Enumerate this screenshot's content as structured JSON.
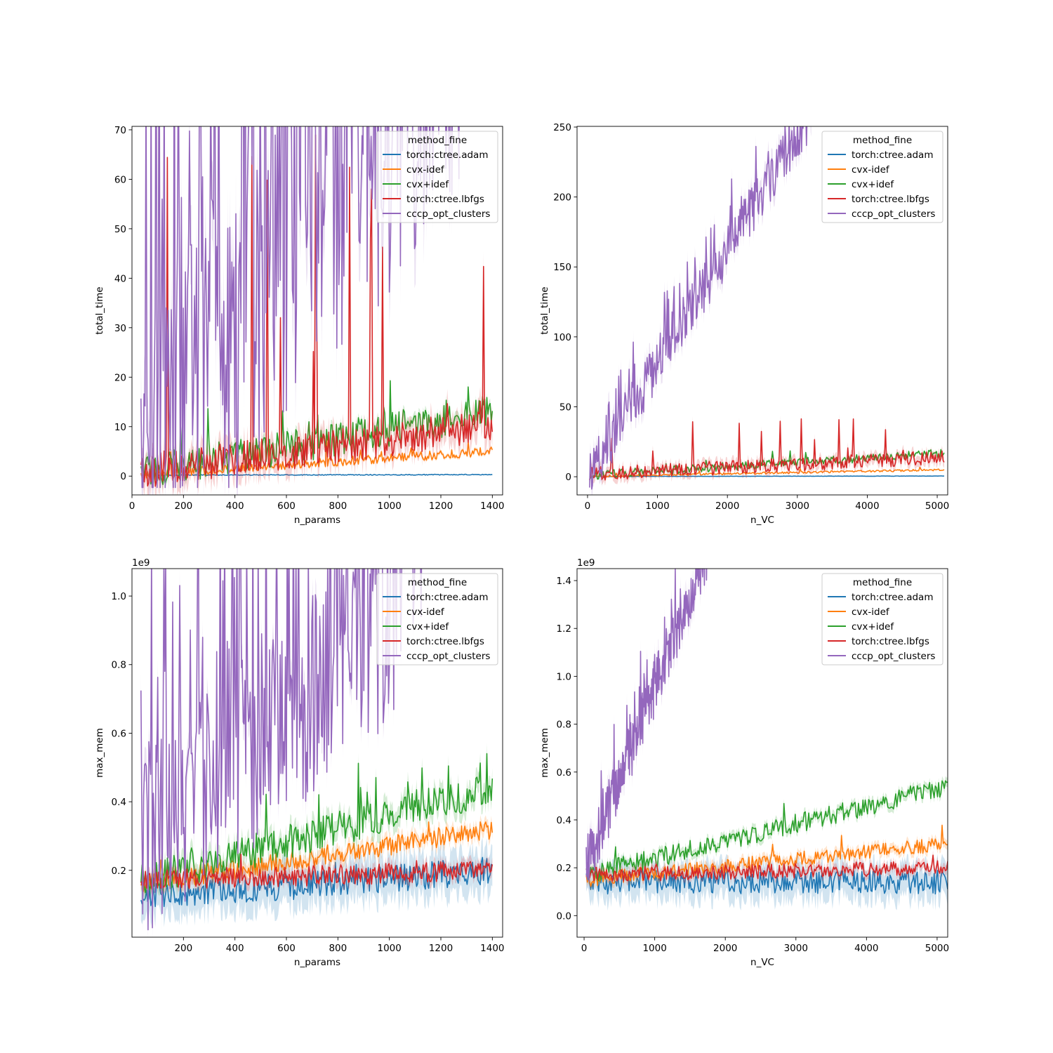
{
  "colors": {
    "torch_ctree_adam": "#1f77b4",
    "cvx_idef_minus": "#ff7f0e",
    "cvx_idef_plus": "#2ca02c",
    "torch_ctree_lbfgs": "#d62728",
    "cccp_opt_clusters": "#9467bd"
  },
  "chart_data": [
    {
      "type": "line",
      "xlabel": "n_params",
      "ylabel": "total_time",
      "offset_text": "",
      "xlim": [
        0,
        1440
      ],
      "ylim": [
        -3.8,
        70.7
      ],
      "xticks": [
        0,
        200,
        400,
        600,
        800,
        1000,
        1200,
        1400
      ],
      "yticks": [
        0,
        10,
        20,
        30,
        40,
        50,
        60,
        70
      ],
      "ytick_labels": [
        "0",
        "10",
        "20",
        "30",
        "40",
        "50",
        "60",
        "70"
      ],
      "legend": {
        "title": "method_fine",
        "location": "upper right"
      },
      "series": [
        {
          "name": "torch:ctree.adam",
          "key": "torch_ctree_adam",
          "x_start": 35,
          "x_end": 1400,
          "level": [
            0.2,
            0.3
          ],
          "noise": 0.08,
          "spike_rate": 0,
          "spike_max": 0,
          "band": 0.05
        },
        {
          "name": "cvx-idef",
          "key": "cvx_idef_minus",
          "x_start": 35,
          "x_end": 1400,
          "level": [
            0.3,
            5.0
          ],
          "noise": 0.9,
          "spike_rate": 0.03,
          "spike_max": 6,
          "band": 0.4
        },
        {
          "name": "cvx+idef",
          "key": "cvx_idef_plus",
          "x_start": 35,
          "x_end": 1400,
          "level": [
            0.8,
            13.0
          ],
          "noise": 3.5,
          "spike_rate": 0.04,
          "spike_max": 10,
          "band": 1.0
        },
        {
          "name": "torch:ctree.lbfgs",
          "key": "torch_ctree_lbfgs",
          "x_start": 35,
          "x_end": 1400,
          "level": [
            1.0,
            10.0
          ],
          "noise": 3.5,
          "spike_rate": 0.05,
          "spike_max": 70,
          "band": 3.0
        },
        {
          "name": "cccp_opt_clusters",
          "key": "cccp_opt_clusters",
          "x_start": 35,
          "x_end": 1290,
          "level": [
            2.0,
            90.0
          ],
          "noise": 35,
          "spike_rate": 0.35,
          "spike_max": 120,
          "band": 8.0
        }
      ]
    },
    {
      "type": "line",
      "xlabel": "n_VC",
      "ylabel": "total_time",
      "offset_text": "",
      "xlim": [
        -150,
        5150
      ],
      "ylim": [
        -13,
        250.5
      ],
      "xticks": [
        0,
        1000,
        2000,
        3000,
        4000,
        5000
      ],
      "yticks": [
        0,
        50,
        100,
        150,
        200,
        250
      ],
      "ytick_labels": [
        "0",
        "50",
        "100",
        "150",
        "200",
        "250"
      ],
      "legend": {
        "title": "method_fine",
        "location": "upper right"
      },
      "series": [
        {
          "name": "torch:ctree.adam",
          "key": "torch_ctree_adam",
          "x_start": 30,
          "x_end": 5100,
          "level": [
            0.2,
            0.5
          ],
          "noise": 0.1,
          "spike_rate": 0,
          "spike_max": 0,
          "band": 0.1
        },
        {
          "name": "cvx-idef",
          "key": "cvx_idef_minus",
          "x_start": 30,
          "x_end": 5100,
          "level": [
            0.3,
            5.0
          ],
          "noise": 0.7,
          "spike_rate": 0.02,
          "spike_max": 3,
          "band": 0.3
        },
        {
          "name": "cvx+idef",
          "key": "cvx_idef_plus",
          "x_start": 30,
          "x_end": 5100,
          "level": [
            1.0,
            17.0
          ],
          "noise": 3.0,
          "spike_rate": 0.03,
          "spike_max": 8,
          "band": 1.0
        },
        {
          "name": "torch:ctree.lbfgs",
          "key": "torch_ctree_lbfgs",
          "x_start": 30,
          "x_end": 5100,
          "level": [
            2.0,
            14.0
          ],
          "noise": 5.0,
          "spike_rate": 0.04,
          "spike_max": 40,
          "band": 4.0
        },
        {
          "name": "cccp_opt_clusters",
          "key": "cccp_opt_clusters",
          "x_start": 30,
          "x_end": 3200,
          "level": [
            1.0,
            260.0
          ],
          "noise": 18,
          "spike_rate": 0.2,
          "spike_max": 30,
          "band": 8.0
        }
      ]
    },
    {
      "type": "line",
      "xlabel": "n_params",
      "ylabel": "max_mem",
      "offset_text": "1e9",
      "xlim": [
        0,
        1440
      ],
      "ylim": [
        0.005,
        1.08
      ],
      "xticks": [
        200,
        400,
        600,
        800,
        1000,
        1200,
        1400
      ],
      "yticks": [
        0.2,
        0.4,
        0.6,
        0.8,
        1.0
      ],
      "ytick_labels": [
        "0.2",
        "0.4",
        "0.6",
        "0.8",
        "1.0"
      ],
      "legend": {
        "title": "method_fine",
        "location": "upper right"
      },
      "series": [
        {
          "name": "torch:ctree.adam",
          "key": "torch_ctree_adam",
          "x_start": 35,
          "x_end": 1400,
          "level": [
            0.12,
            0.2
          ],
          "noise": 0.04,
          "spike_rate": 0.02,
          "spike_max": 0.05,
          "band": 0.06
        },
        {
          "name": "cvx-idef",
          "key": "cvx_idef_minus",
          "x_start": 35,
          "x_end": 1400,
          "level": [
            0.16,
            0.32
          ],
          "noise": 0.03,
          "spike_rate": 0.03,
          "spike_max": 0.06,
          "band": 0.02
        },
        {
          "name": "cvx+idef",
          "key": "cvx_idef_plus",
          "x_start": 35,
          "x_end": 1400,
          "level": [
            0.17,
            0.44
          ],
          "noise": 0.05,
          "spike_rate": 0.04,
          "spike_max": 0.15,
          "band": 0.03
        },
        {
          "name": "torch:ctree.lbfgs",
          "key": "torch_ctree_lbfgs",
          "x_start": 35,
          "x_end": 1400,
          "level": [
            0.17,
            0.2
          ],
          "noise": 0.03,
          "spike_rate": 0.02,
          "spike_max": 0.05,
          "band": 0.02
        },
        {
          "name": "cccp_opt_clusters",
          "key": "cccp_opt_clusters",
          "x_start": 35,
          "x_end": 1130,
          "level": [
            0.25,
            1.0
          ],
          "noise": 0.3,
          "spike_rate": 0.35,
          "spike_max": 0.8,
          "band": 0.05
        }
      ]
    },
    {
      "type": "line",
      "xlabel": "n_VC",
      "ylabel": "max_mem",
      "offset_text": "1e9",
      "xlim": [
        -100,
        5150
      ],
      "ylim": [
        -0.09,
        1.45
      ],
      "xticks": [
        0,
        1000,
        2000,
        3000,
        4000,
        5000
      ],
      "yticks": [
        0.0,
        0.2,
        0.4,
        0.6,
        0.8,
        1.0,
        1.2,
        1.4
      ],
      "ytick_labels": [
        "0.0",
        "0.2",
        "0.4",
        "0.6",
        "0.8",
        "1.0",
        "1.2",
        "1.4"
      ],
      "legend": {
        "title": "method_fine",
        "location": "upper right"
      },
      "series": [
        {
          "name": "torch:ctree.adam",
          "key": "torch_ctree_adam",
          "x_start": 30,
          "x_end": 5150,
          "level": [
            0.14,
            0.14
          ],
          "noise": 0.05,
          "spike_rate": 0.01,
          "spike_max": 0.04,
          "band": 0.07
        },
        {
          "name": "cvx-idef",
          "key": "cvx_idef_minus",
          "x_start": 30,
          "x_end": 5150,
          "level": [
            0.15,
            0.3
          ],
          "noise": 0.03,
          "spike_rate": 0.03,
          "spike_max": 0.06,
          "band": 0.02
        },
        {
          "name": "cvx+idef",
          "key": "cvx_idef_plus",
          "x_start": 30,
          "x_end": 5150,
          "level": [
            0.17,
            0.54
          ],
          "noise": 0.04,
          "spike_rate": 0.03,
          "spike_max": 0.08,
          "band": 0.02
        },
        {
          "name": "torch:ctree.lbfgs",
          "key": "torch_ctree_lbfgs",
          "x_start": 30,
          "x_end": 5150,
          "level": [
            0.17,
            0.2
          ],
          "noise": 0.03,
          "spike_rate": 0.02,
          "spike_max": 0.04,
          "band": 0.02
        },
        {
          "name": "cccp_opt_clusters",
          "key": "cccp_opt_clusters",
          "x_start": 30,
          "x_end": 1970,
          "level": [
            0.2,
            1.7
          ],
          "noise": 0.12,
          "spike_rate": 0.2,
          "spike_max": 0.2,
          "band": 0.05
        }
      ]
    }
  ]
}
